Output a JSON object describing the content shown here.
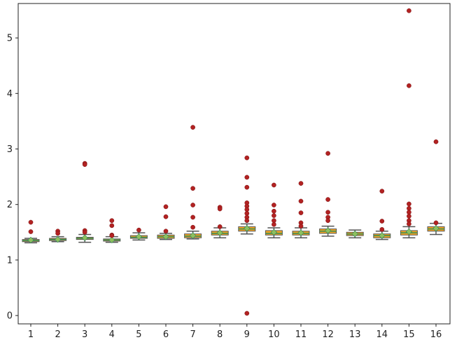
{
  "chart_data": {
    "type": "box",
    "title": "",
    "xlabel": "",
    "ylabel": "",
    "categories": [
      "1",
      "2",
      "3",
      "4",
      "5",
      "6",
      "7",
      "8",
      "9",
      "10",
      "11",
      "12",
      "13",
      "14",
      "15",
      "16"
    ],
    "yticks": [
      "0",
      "1",
      "2",
      "3",
      "4",
      "5"
    ],
    "ylim": [
      -0.15,
      5.62
    ],
    "grid": false,
    "colors": {
      "box_fill": "#f5a623",
      "box_edge": "#555555",
      "median": "#2e8b57",
      "mean_marker": "#8fbf5f",
      "flier": "#b22222",
      "axis": "#222222"
    },
    "boxes": [
      {
        "q1": 1.33,
        "q3": 1.37,
        "median": 1.35,
        "mean": 1.36,
        "whisker_low": 1.31,
        "whisker_high": 1.39,
        "fliers": [
          1.68,
          1.51
        ]
      },
      {
        "q1": 1.35,
        "q3": 1.39,
        "median": 1.37,
        "mean": 1.37,
        "whisker_low": 1.33,
        "whisker_high": 1.42,
        "fliers": [
          1.52,
          1.48
        ]
      },
      {
        "q1": 1.37,
        "q3": 1.41,
        "median": 1.39,
        "mean": 1.4,
        "whisker_low": 1.32,
        "whisker_high": 1.46,
        "fliers": [
          2.74,
          2.72,
          1.53,
          1.5
        ]
      },
      {
        "q1": 1.34,
        "q3": 1.38,
        "median": 1.36,
        "mean": 1.36,
        "whisker_low": 1.32,
        "whisker_high": 1.42,
        "fliers": [
          1.71,
          1.62,
          1.45,
          1.44
        ]
      },
      {
        "q1": 1.39,
        "q3": 1.44,
        "median": 1.41,
        "mean": 1.42,
        "whisker_low": 1.36,
        "whisker_high": 1.49,
        "fliers": [
          1.54
        ]
      },
      {
        "q1": 1.39,
        "q3": 1.45,
        "median": 1.42,
        "mean": 1.42,
        "whisker_low": 1.37,
        "whisker_high": 1.48,
        "fliers": [
          1.96,
          1.78,
          1.52
        ]
      },
      {
        "q1": 1.4,
        "q3": 1.47,
        "median": 1.43,
        "mean": 1.44,
        "whisker_low": 1.38,
        "whisker_high": 1.52,
        "fliers": [
          3.39,
          2.29,
          1.99,
          1.77,
          1.59
        ]
      },
      {
        "q1": 1.45,
        "q3": 1.52,
        "median": 1.48,
        "mean": 1.49,
        "whisker_low": 1.4,
        "whisker_high": 1.58,
        "fliers": [
          1.95,
          1.92,
          1.6
        ]
      },
      {
        "q1": 1.52,
        "q3": 1.6,
        "median": 1.56,
        "mean": 1.57,
        "whisker_low": 1.47,
        "whisker_high": 1.65,
        "fliers": [
          2.84,
          2.49,
          2.31,
          2.03,
          1.97,
          1.91,
          1.84,
          1.77,
          1.71,
          0.04
        ]
      },
      {
        "q1": 1.45,
        "q3": 1.53,
        "median": 1.48,
        "mean": 1.5,
        "whisker_low": 1.4,
        "whisker_high": 1.58,
        "fliers": [
          2.35,
          1.99,
          1.88,
          1.8,
          1.71,
          1.64
        ]
      },
      {
        "q1": 1.45,
        "q3": 1.52,
        "median": 1.48,
        "mean": 1.49,
        "whisker_low": 1.4,
        "whisker_high": 1.58,
        "fliers": [
          2.38,
          2.06,
          1.85,
          1.67,
          1.61
        ]
      },
      {
        "q1": 1.48,
        "q3": 1.56,
        "median": 1.52,
        "mean": 1.53,
        "whisker_low": 1.43,
        "whisker_high": 1.61,
        "fliers": [
          2.92,
          2.09,
          1.86,
          1.77,
          1.71
        ]
      },
      {
        "q1": 1.44,
        "q3": 1.5,
        "median": 1.47,
        "mean": 1.47,
        "whisker_low": 1.4,
        "whisker_high": 1.54,
        "fliers": []
      },
      {
        "q1": 1.4,
        "q3": 1.47,
        "median": 1.44,
        "mean": 1.44,
        "whisker_low": 1.37,
        "whisker_high": 1.52,
        "fliers": [
          2.24,
          1.7,
          1.55
        ]
      },
      {
        "q1": 1.45,
        "q3": 1.53,
        "median": 1.49,
        "mean": 1.51,
        "whisker_low": 1.4,
        "whisker_high": 1.6,
        "fliers": [
          5.49,
          4.14,
          2.01,
          1.93,
          1.86,
          1.79,
          1.71,
          1.65
        ]
      },
      {
        "q1": 1.52,
        "q3": 1.6,
        "median": 1.56,
        "mean": 1.57,
        "whisker_low": 1.46,
        "whisker_high": 1.66,
        "fliers": [
          3.13,
          1.67
        ]
      }
    ]
  }
}
